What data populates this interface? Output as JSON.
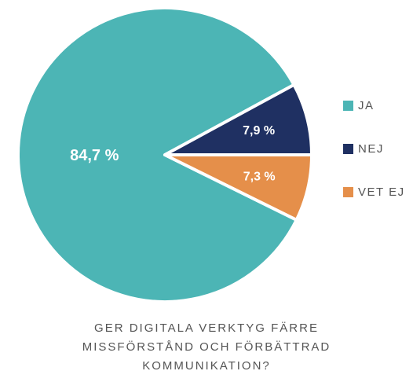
{
  "chart_data": {
    "type": "pie",
    "title": "GER DIGITALA VERKTYG FÄRRE MISSFÖRSTÅND OCH FÖRBÄTTRAD KOMMUNIKATION?",
    "categories": [
      "JA",
      "NEJ",
      "VET EJ"
    ],
    "values": [
      84.7,
      7.9,
      7.3
    ],
    "value_labels": [
      "84,7 %",
      "7,9 %",
      "7,3 %"
    ],
    "colors": [
      "#4cb5b5",
      "#1f3062",
      "#e58f4a"
    ],
    "legend": "right"
  }
}
